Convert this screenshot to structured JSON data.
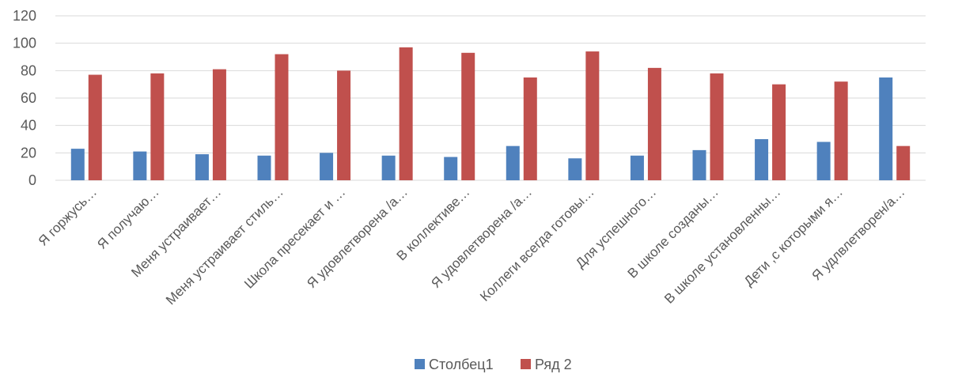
{
  "chart_data": {
    "type": "bar",
    "categories": [
      "Я горжусь…",
      "Я получаю…",
      "Меня устраивает…",
      "Меня устраивает стиль…",
      "Школа пресекает и …",
      "Я удовлетворена /а…",
      "В коллективе…",
      "Я удовлетворена /а…",
      "Коллеги всегда готовы…",
      "Для успешного…",
      "В школе созданы…",
      "В школе установленны…",
      "Дети ,с которыми я…",
      "Я удлвлетворен/а…"
    ],
    "series": [
      {
        "name": "Столбец1",
        "color": "#4f81bd",
        "values": [
          23,
          21,
          19,
          18,
          20,
          18,
          17,
          25,
          16,
          18,
          22,
          30,
          28,
          75
        ]
      },
      {
        "name": "Ряд 2",
        "color": "#c0504d",
        "values": [
          77,
          78,
          81,
          92,
          80,
          97,
          93,
          75,
          94,
          82,
          78,
          70,
          72,
          25
        ]
      }
    ],
    "y_ticks": [
      "0",
      "20",
      "40",
      "60",
      "80",
      "100",
      "120"
    ],
    "ylim": [
      0,
      120
    ],
    "grid": true,
    "gridline_color": "#d9d9d9",
    "legend_position": "bottom"
  }
}
